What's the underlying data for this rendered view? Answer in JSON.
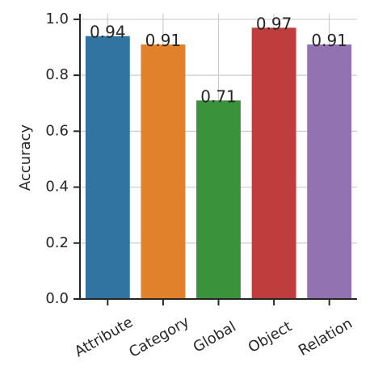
{
  "chart_data": {
    "type": "bar",
    "y_label": "Accuracy",
    "categories": [
      "Attribute",
      "Category",
      "Global",
      "Object",
      "Relation"
    ],
    "values": [
      0.94,
      0.91,
      0.71,
      0.97,
      0.91
    ],
    "colors": [
      "#3274a1",
      "#e1812c",
      "#3a923a",
      "#c03d3e",
      "#9372b2"
    ],
    "ylim": [
      0,
      1.02
    ],
    "yticks": [
      {
        "value": 0,
        "label": "0.0"
      },
      0.2,
      0.4,
      0.6,
      0.8,
      {
        "value": 1,
        "label": "1.0"
      }
    ],
    "grid": true
  }
}
